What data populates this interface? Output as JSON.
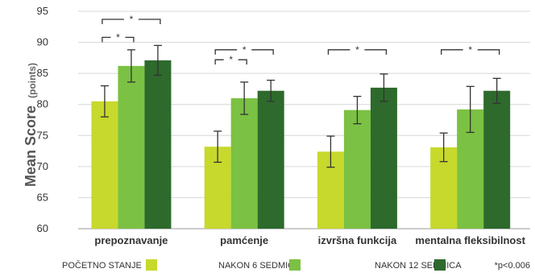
{
  "chart_data": {
    "type": "bar",
    "ylabel": "Mean Score",
    "ylabel_unit": "(points)",
    "ylim": [
      60,
      95
    ],
    "yticks": [
      60,
      65,
      70,
      75,
      80,
      85,
      90,
      95
    ],
    "grid": true,
    "categories": [
      "prepoznavanje",
      "pamćenje",
      "izvršna funkcija",
      "mentalna fleksibilnost"
    ],
    "series": [
      {
        "name": "POČETNO STANJE",
        "color": "#c7d92c",
        "values": [
          80.5,
          73.2,
          72.4,
          73.1
        ],
        "err": [
          2.5,
          2.5,
          2.5,
          2.3
        ]
      },
      {
        "name": "NAKON 6 SEDMICA",
        "color": "#7bc143",
        "values": [
          86.2,
          81.0,
          79.1,
          79.2
        ],
        "err": [
          2.6,
          2.6,
          2.2,
          3.7
        ]
      },
      {
        "name": "NAKON 12 SEDMICA",
        "color": "#2d6a2c",
        "values": [
          87.1,
          82.2,
          82.7,
          82.2
        ],
        "err": [
          2.4,
          1.7,
          2.2,
          2.0
        ]
      }
    ],
    "significance": [
      {
        "category": 0,
        "from_series": 0,
        "to_series": 1,
        "level": 90.8,
        "label": "*"
      },
      {
        "category": 0,
        "from_series": 0,
        "to_series": 2,
        "level": 93.7,
        "label": "*"
      },
      {
        "category": 1,
        "from_series": 0,
        "to_series": 1,
        "level": 87.2,
        "label": "*"
      },
      {
        "category": 1,
        "from_series": 0,
        "to_series": 2,
        "level": 88.8,
        "label": "*"
      },
      {
        "category": 2,
        "from_series": 0,
        "to_series": 2,
        "level": 88.8,
        "label": "*"
      },
      {
        "category": 3,
        "from_series": 0,
        "to_series": 2,
        "level": 88.8,
        "label": "*"
      }
    ],
    "note": "*p<0.006"
  }
}
